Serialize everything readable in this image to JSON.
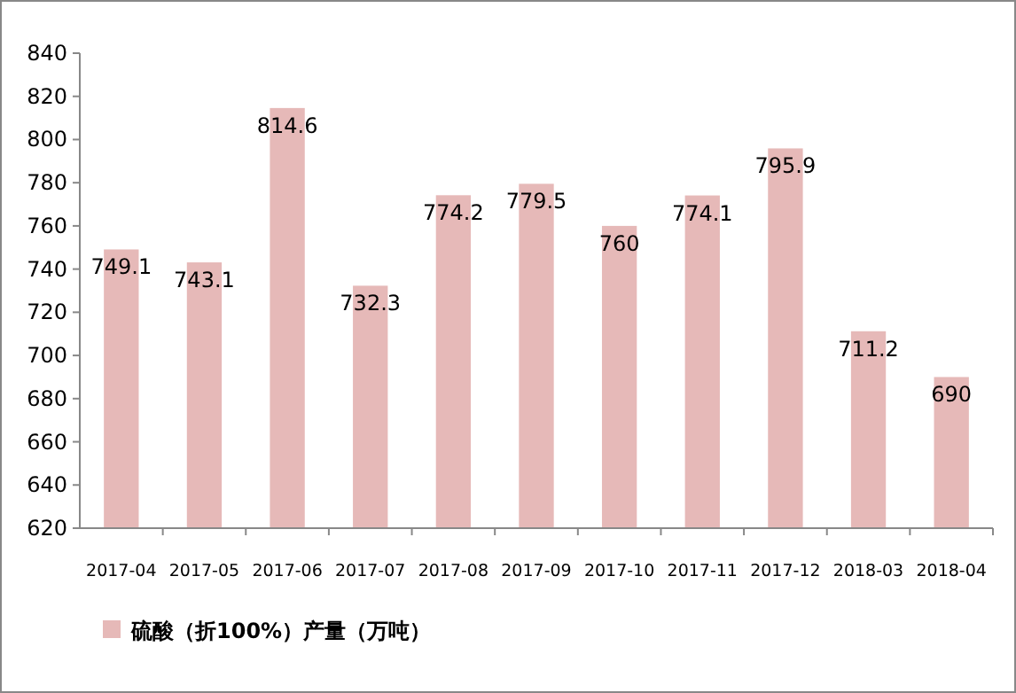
{
  "chart_data": {
    "type": "bar",
    "categories": [
      "2017-04",
      "2017-05",
      "2017-06",
      "2017-07",
      "2017-08",
      "2017-09",
      "2017-10",
      "2017-11",
      "2017-12",
      "2018-03",
      "2018-04"
    ],
    "series": [
      {
        "name": "硫酸（折100%）产量（万吨）",
        "color": "#e6b9b8",
        "values": [
          749.1,
          743.1,
          814.6,
          732.3,
          774.2,
          779.5,
          760,
          774.1,
          795.9,
          711.2,
          690
        ]
      }
    ],
    "ylim": [
      620,
      840
    ],
    "yticks": [
      620,
      640,
      660,
      680,
      700,
      720,
      740,
      760,
      780,
      800,
      820,
      840
    ],
    "data_labels": true,
    "grid": false,
    "legend": "bottom left"
  }
}
